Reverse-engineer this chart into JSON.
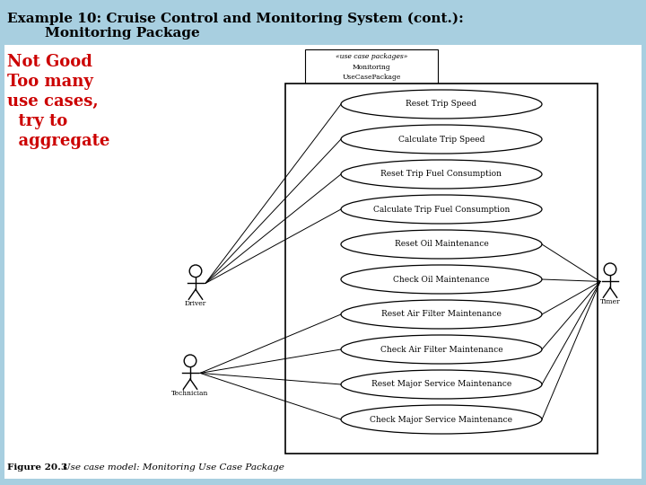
{
  "title_line1": "Example 10: Cruise Control and Monitoring System (cont.):",
  "title_line2": "        Monitoring Package",
  "annotation_lines": [
    "Not Good",
    "Too many",
    "use cases,",
    "  try to",
    "  aggregate"
  ],
  "bg_color": "#a8cfe0",
  "slide_bg": "#ffffff",
  "title_color": "#000000",
  "annotation_color": "#cc0000",
  "use_cases": [
    "Reset Trip Speed",
    "Calculate Trip Speed",
    "Reset Trip Fuel Consumption",
    "Calculate Trip Fuel Consumption",
    "Reset Oil Maintenance",
    "Check Oil Maintenance",
    "Reset Air Filter Maintenance",
    "Check Air Filter Maintenance",
    "Reset Major Service Maintenance",
    "Check Major Service Maintenance"
  ],
  "package_label_line1": "«use case packages»",
  "package_label_line2": "Monitoring",
  "package_label_line3": "UseCasePackage",
  "actor_driver_label": "Driver",
  "actor_technician_label": "Technician",
  "actor_timer_label": "Timer",
  "caption_bold": "Figure 20.3",
  "caption_italic": "   Use case model: Monitoring Use Case Package",
  "caption_color": "#000000",
  "driver_uc_indices": [
    0,
    1,
    2,
    3
  ],
  "tech_uc_indices": [
    6,
    7,
    8,
    9
  ],
  "timer_uc_indices": [
    4,
    5,
    6,
    7,
    8,
    9
  ]
}
